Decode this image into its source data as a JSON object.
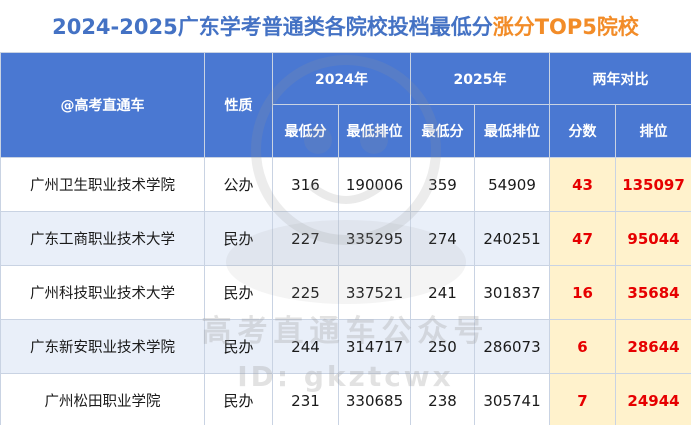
{
  "title": {
    "part1": "2024-2025广东学考普通类各院校投档最低分",
    "part2": "涨分TOP5院校"
  },
  "colors": {
    "title_blue": "#4472c4",
    "title_orange": "#f28c28",
    "header_bg": "#4a78d2",
    "diff_bg": "#fff2cc",
    "diff_text": "#e60000"
  },
  "header": {
    "col_school": "@高考直通车",
    "col_type": "性质",
    "year_2024": "2024年",
    "year_2025": "2025年",
    "compare": "两年对比",
    "min_score": "最低分",
    "min_rank": "最低排位",
    "score": "分数",
    "rank": "排位"
  },
  "rows": [
    {
      "school": "广州卫生职业技术学院",
      "type": "公办",
      "score_2024": "316",
      "rank_2024": "190006",
      "score_2025": "359",
      "rank_2025": "54909",
      "score_diff": "43",
      "rank_diff": "135097"
    },
    {
      "school": "广东工商职业技术大学",
      "type": "民办",
      "score_2024": "227",
      "rank_2024": "335295",
      "score_2025": "274",
      "rank_2025": "240251",
      "score_diff": "47",
      "rank_diff": "95044"
    },
    {
      "school": "广州科技职业技术大学",
      "type": "民办",
      "score_2024": "225",
      "rank_2024": "337521",
      "score_2025": "241",
      "rank_2025": "301837",
      "score_diff": "16",
      "rank_diff": "35684"
    },
    {
      "school": "广东新安职业技术学院",
      "type": "民办",
      "score_2024": "244",
      "rank_2024": "314717",
      "score_2025": "250",
      "rank_2025": "286073",
      "score_diff": "6",
      "rank_diff": "28644"
    },
    {
      "school": "广州松田职业学院",
      "type": "民办",
      "score_2024": "231",
      "rank_2024": "330685",
      "score_2025": "238",
      "rank_2025": "305741",
      "score_diff": "7",
      "rank_diff": "24944"
    }
  ],
  "watermark": {
    "name": "高考直通车公众号",
    "id": "ID: gkztcwx"
  }
}
